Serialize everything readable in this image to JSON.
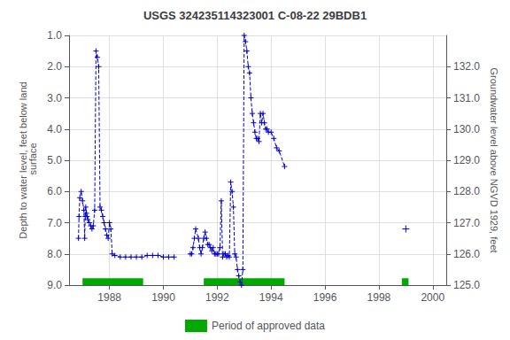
{
  "chart_data": {
    "type": "line",
    "title": "USGS 324235114323001 C-08-22 29BDB1",
    "y_label": "Depth to water level, feet below land\n surface",
    "y2_label": "Groundwater level above NGVD 1929, feet",
    "xlim": [
      1986.5,
      2000.5
    ],
    "xticks": [
      1988,
      1990,
      1992,
      1994,
      1996,
      1998,
      2000
    ],
    "ylim": [
      9.0,
      1.0
    ],
    "yticks": [
      {
        "value": 1.0,
        "label": "1.0"
      },
      {
        "value": 2.0,
        "label": "2.0"
      },
      {
        "value": 3.0,
        "label": "3.0"
      },
      {
        "value": 4.0,
        "label": "4.0"
      },
      {
        "value": 5.0,
        "label": "5.0"
      },
      {
        "value": 6.0,
        "label": "6.0"
      },
      {
        "value": 7.0,
        "label": "7.0"
      },
      {
        "value": 8.0,
        "label": "8.0"
      },
      {
        "value": 9.0,
        "label": "9.0"
      }
    ],
    "y2lim": [
      125.0,
      133.0
    ],
    "y2ticks": [
      {
        "value": 125.0,
        "label": "125.0"
      },
      {
        "value": 126.0,
        "label": "126.0"
      },
      {
        "value": 127.0,
        "label": "127.0"
      },
      {
        "value": 128.0,
        "label": "128.0"
      },
      {
        "value": 129.0,
        "label": "129.0"
      },
      {
        "value": 130.0,
        "label": "130.0"
      },
      {
        "value": 131.0,
        "label": "131.0"
      },
      {
        "value": 132.0,
        "label": "132.0"
      }
    ],
    "grid": true,
    "legend": "bottom",
    "series": [
      {
        "color": "#0000CC",
        "marker": "plus",
        "line_style": "dashed",
        "x": [
          1986.85,
          1986.87,
          1986.9,
          1986.95,
          1987.0,
          1987.05,
          1987.08,
          1987.1,
          1987.12,
          1987.15,
          1987.17,
          1987.2,
          1987.25,
          1987.3,
          1987.35,
          1987.4,
          1987.45,
          1987.5,
          1987.55,
          1987.6,
          1987.65,
          1987.7,
          1987.75,
          1987.8,
          1987.85,
          1987.9,
          1987.95,
          1988.0,
          1988.05,
          1988.1,
          1988.2,
          1988.4,
          1988.6,
          1988.8,
          1989.0,
          1989.2,
          1989.4,
          1989.6,
          1989.8,
          1990.0,
          1990.2,
          1990.4
        ],
        "values": [
          7.5,
          6.8,
          6.2,
          6.0,
          6.3,
          6.6,
          7.5,
          6.8,
          6.5,
          6.7,
          6.8,
          6.9,
          7.0,
          7.1,
          7.2,
          7.1,
          6.6,
          1.5,
          1.7,
          2.0,
          6.5,
          6.6,
          6.8,
          7.0,
          7.2,
          7.4,
          7.5,
          7.0,
          7.2,
          8.0,
          8.05,
          8.1,
          8.1,
          8.1,
          8.1,
          8.1,
          8.05,
          8.05,
          8.05,
          8.1,
          8.1,
          8.1
        ]
      },
      {
        "color": "#0000CC",
        "marker": "plus",
        "line_style": "dashed",
        "x": [
          1991.0,
          1991.05,
          1991.1,
          1991.15,
          1991.2,
          1991.3,
          1991.35,
          1991.4,
          1991.45,
          1991.5,
          1991.55,
          1991.6,
          1991.65,
          1991.7,
          1991.75,
          1991.8,
          1991.85,
          1991.9,
          1991.95,
          1992.0,
          1992.05,
          1992.1,
          1992.15,
          1992.2,
          1992.25,
          1992.3,
          1992.35,
          1992.4,
          1992.45,
          1992.5,
          1992.55,
          1992.6,
          1992.65,
          1992.7,
          1992.75,
          1992.8,
          1992.85,
          1992.9,
          1992.95,
          1993.0,
          1993.05,
          1993.1,
          1993.15,
          1993.2,
          1993.25,
          1993.3,
          1993.35,
          1993.4,
          1993.45,
          1993.5,
          1993.55,
          1993.6,
          1993.65,
          1993.7,
          1993.75,
          1993.8,
          1993.85,
          1993.9,
          1994.0,
          1994.1,
          1994.2,
          1994.3,
          1994.5
        ],
        "values": [
          8.0,
          8.0,
          7.8,
          7.5,
          7.2,
          7.5,
          7.8,
          8.0,
          7.8,
          7.5,
          7.3,
          7.5,
          7.7,
          7.7,
          7.8,
          7.9,
          7.8,
          8.0,
          8.0,
          8.0,
          8.0,
          7.8,
          6.3,
          8.1,
          8.0,
          8.0,
          8.1,
          8.05,
          8.1,
          5.7,
          6.0,
          6.5,
          8.0,
          8.1,
          8.5,
          8.7,
          8.9,
          9.0,
          8.5,
          1.0,
          1.2,
          1.5,
          2.0,
          2.2,
          3.0,
          3.5,
          3.8,
          4.1,
          4.3,
          4.3,
          4.4,
          3.5,
          3.8,
          3.5,
          3.8,
          4.0,
          4.0,
          4.1,
          4.1,
          4.3,
          4.6,
          4.7,
          5.2
        ]
      },
      {
        "color": "#0000CC",
        "marker": "plus",
        "line_style": "dashed",
        "x": [
          1999.0
        ],
        "values": [
          7.2
        ]
      },
      {
        "type": "periods",
        "name": "Period of approved data",
        "color": "#00AA00",
        "ranges": [
          [
            1987.0,
            1989.25
          ],
          [
            1991.5,
            1994.5
          ],
          [
            1998.85,
            1999.1
          ]
        ],
        "y_top": 9.0,
        "height": 0.22
      }
    ]
  }
}
